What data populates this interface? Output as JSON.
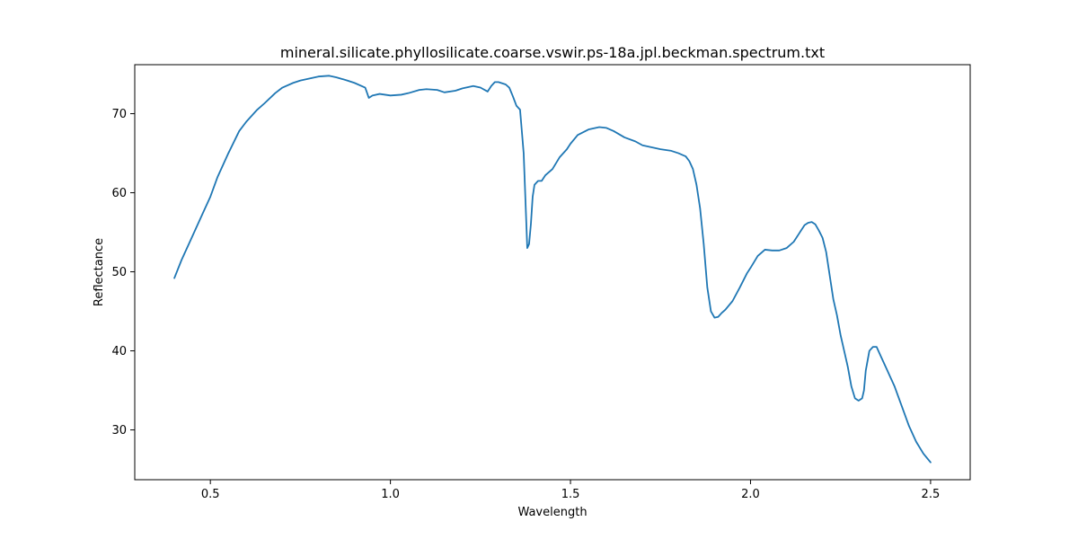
{
  "chart_data": {
    "type": "line",
    "title": "mineral.silicate.phyllosilicate.coarse.vswir.ps-18a.jpl.beckman.spectrum.txt",
    "xlabel": "Wavelength",
    "ylabel": "Reflectance",
    "xlim": [
      0.29,
      2.61
    ],
    "ylim": [
      23.7,
      76.2
    ],
    "xticks": [
      0.5,
      1.0,
      1.5,
      2.0,
      2.5
    ],
    "xtick_labels": [
      "0.5",
      "1.0",
      "1.5",
      "2.0",
      "2.5"
    ],
    "yticks": [
      30,
      40,
      50,
      60,
      70
    ],
    "ytick_labels": [
      "30",
      "40",
      "50",
      "60",
      "70"
    ],
    "grid": false,
    "legend": "none",
    "series": [
      {
        "color": "#1f77b4",
        "x": [
          0.4,
          0.42,
          0.45,
          0.48,
          0.5,
          0.52,
          0.55,
          0.58,
          0.6,
          0.63,
          0.65,
          0.68,
          0.7,
          0.73,
          0.75,
          0.78,
          0.8,
          0.83,
          0.85,
          0.88,
          0.9,
          0.93,
          0.94,
          0.95,
          0.97,
          1.0,
          1.03,
          1.05,
          1.08,
          1.1,
          1.13,
          1.15,
          1.18,
          1.2,
          1.23,
          1.25,
          1.27,
          1.28,
          1.29,
          1.3,
          1.32,
          1.33,
          1.34,
          1.35,
          1.36,
          1.37,
          1.375,
          1.38,
          1.385,
          1.39,
          1.395,
          1.4,
          1.41,
          1.42,
          1.43,
          1.45,
          1.47,
          1.49,
          1.5,
          1.52,
          1.55,
          1.58,
          1.6,
          1.62,
          1.65,
          1.68,
          1.7,
          1.73,
          1.75,
          1.78,
          1.8,
          1.82,
          1.83,
          1.84,
          1.85,
          1.86,
          1.87,
          1.88,
          1.89,
          1.9,
          1.91,
          1.92,
          1.93,
          1.95,
          1.97,
          1.99,
          2.0,
          2.02,
          2.04,
          2.06,
          2.08,
          2.1,
          2.12,
          2.14,
          2.15,
          2.16,
          2.17,
          2.18,
          2.19,
          2.2,
          2.21,
          2.22,
          2.23,
          2.24,
          2.25,
          2.26,
          2.27,
          2.28,
          2.29,
          2.3,
          2.31,
          2.315,
          2.32,
          2.33,
          2.34,
          2.35,
          2.36,
          2.37,
          2.38,
          2.39,
          2.4,
          2.42,
          2.44,
          2.46,
          2.48,
          2.5
        ],
        "y": [
          49.2,
          51.5,
          54.5,
          57.5,
          59.5,
          62.0,
          65.0,
          67.8,
          69.0,
          70.5,
          71.3,
          72.6,
          73.3,
          73.9,
          74.2,
          74.5,
          74.7,
          74.8,
          74.6,
          74.2,
          73.9,
          73.3,
          72.0,
          72.3,
          72.5,
          72.3,
          72.4,
          72.6,
          73.0,
          73.1,
          73.0,
          72.7,
          72.9,
          73.2,
          73.5,
          73.3,
          72.8,
          73.5,
          74.0,
          74.0,
          73.7,
          73.3,
          72.2,
          71.0,
          70.5,
          65.0,
          59.0,
          53.0,
          53.5,
          56.0,
          59.5,
          61.0,
          61.5,
          61.5,
          62.2,
          63.0,
          64.5,
          65.5,
          66.2,
          67.3,
          68.0,
          68.3,
          68.2,
          67.8,
          67.0,
          66.5,
          66.0,
          65.7,
          65.5,
          65.3,
          65.0,
          64.6,
          64.0,
          63.0,
          61.0,
          58.0,
          53.5,
          48.0,
          45.0,
          44.2,
          44.3,
          44.8,
          45.2,
          46.3,
          48.0,
          49.8,
          50.5,
          52.0,
          52.8,
          52.7,
          52.7,
          53.0,
          53.8,
          55.2,
          55.9,
          56.2,
          56.3,
          56.0,
          55.2,
          54.3,
          52.5,
          49.5,
          46.5,
          44.5,
          42.0,
          40.0,
          38.0,
          35.5,
          34.0,
          33.7,
          34.0,
          35.0,
          37.5,
          40.0,
          40.5,
          40.5,
          39.5,
          38.5,
          37.5,
          36.5,
          35.5,
          33.0,
          30.5,
          28.5,
          27.0,
          25.9
        ]
      }
    ]
  }
}
